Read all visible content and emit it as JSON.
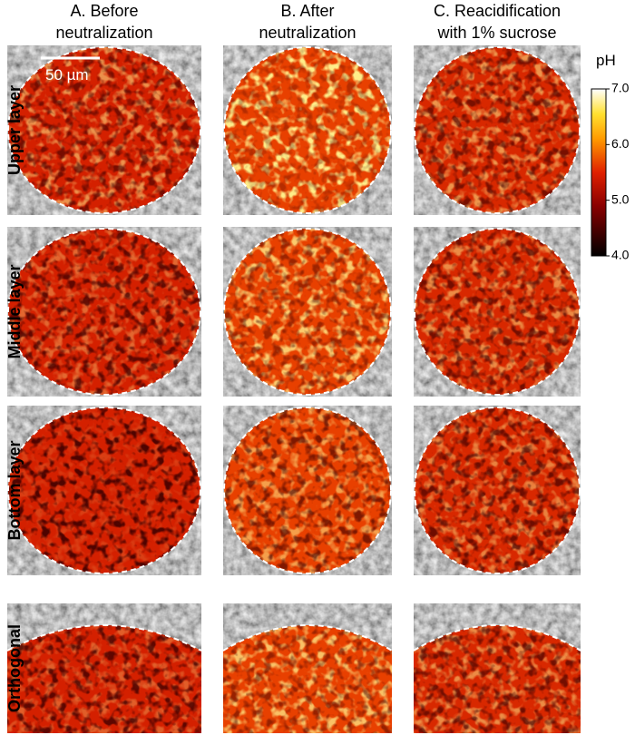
{
  "columns": [
    [
      "A. Before",
      "neutralization"
    ],
    [
      "B. After",
      "neutralization"
    ],
    [
      "C. Reacidification",
      "with 1% sucrose"
    ]
  ],
  "rows": [
    "Upper layer",
    "Middle layer",
    "Bottom layer",
    "Orthogonal"
  ],
  "scale_bar": "50 µm",
  "colorbar": {
    "label": "pH",
    "lim": [
      4,
      7
    ],
    "ticks": [
      {
        "value": 7,
        "label": "7.0"
      },
      {
        "value": 6,
        "label": "6.0"
      },
      {
        "value": 5,
        "label": "5.0"
      },
      {
        "value": 4,
        "label": "4.0"
      }
    ]
  }
}
